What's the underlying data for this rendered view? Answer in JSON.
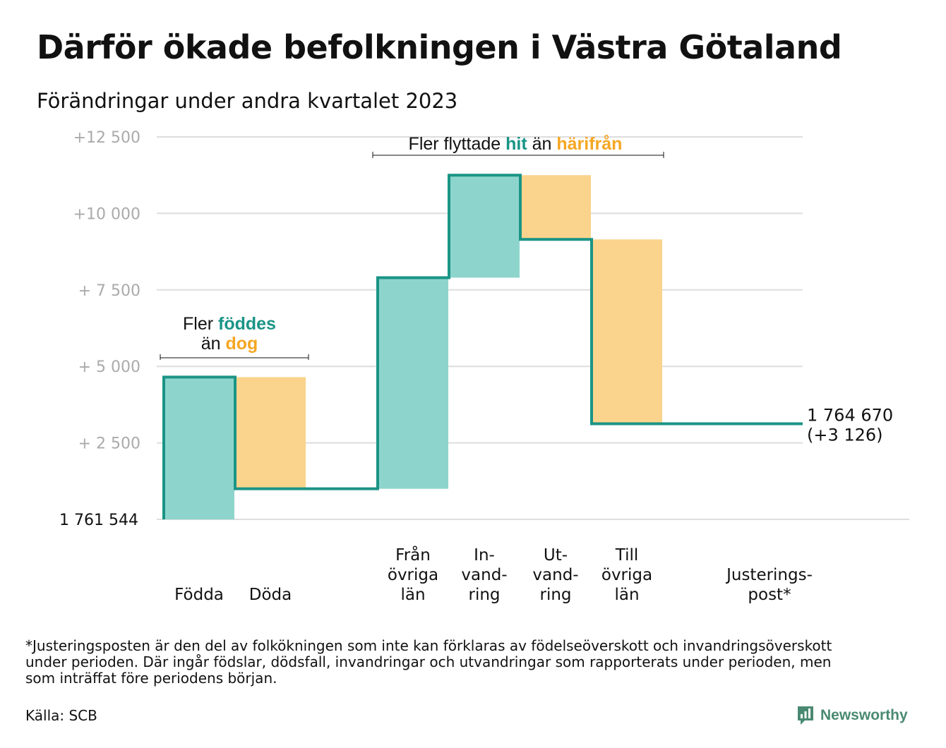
{
  "title": "Därför ökade befolkningen i Västra Götaland",
  "subtitle": "Förändringar under andra kvartalet 2023",
  "colors": {
    "increase": "#8dd5cc",
    "decrease": "#fad48c",
    "line": "#1a9486",
    "grid": "#dddddd",
    "accent_teal": "#1a9486",
    "accent_orange": "#f5a623",
    "brand": "#4a8a72"
  },
  "chart_data": {
    "type": "waterfall",
    "base_label": "1  761   544",
    "base_value": 1761544,
    "y_ticks": [
      {
        "value": 12500,
        "label": "+12   500"
      },
      {
        "value": 10000,
        "label": "+10   000"
      },
      {
        "value": 7500,
        "label": "+  7  500"
      },
      {
        "value": 5000,
        "label": "+  5  000"
      },
      {
        "value": 2500,
        "label": "+  2  500"
      }
    ],
    "ylim": [
      0,
      12500
    ],
    "steps": [
      {
        "label_lines": [
          "Födda"
        ],
        "value": 4650,
        "kind": "increase"
      },
      {
        "label_lines": [
          "Döda"
        ],
        "value": -3650,
        "kind": "decrease"
      },
      {
        "label_lines": [],
        "value": 0,
        "kind": "none"
      },
      {
        "label_lines": [
          "Från",
          "övriga",
          "län"
        ],
        "value": 6900,
        "kind": "increase"
      },
      {
        "label_lines": [
          "In-",
          "vand-",
          "ring"
        ],
        "value": 3350,
        "kind": "increase"
      },
      {
        "label_lines": [
          "Ut-",
          "vand-",
          "ring"
        ],
        "value": -2100,
        "kind": "decrease"
      },
      {
        "label_lines": [
          "Till",
          "övriga",
          "län"
        ],
        "value": -6024,
        "kind": "decrease"
      },
      {
        "label_lines": [],
        "value": 0,
        "kind": "none"
      },
      {
        "label_lines": [
          "Justerings-",
          "post*"
        ],
        "value": 0,
        "kind": "increase"
      }
    ],
    "end_label": "1 764 670",
    "end_change": "(+3 126)",
    "annotation_births": {
      "line1_prefix": "Fler ",
      "line1_highlight": "föddes",
      "line2_prefix": "än ",
      "line2_highlight": "dog"
    },
    "annotation_migration": {
      "prefix": "Fler flyttade ",
      "highlight1": "hit",
      "middle": " än ",
      "highlight2": "härifrån"
    }
  },
  "footnote_lines": [
    "*Justeringsposten är den del av folkökningen som inte kan förklaras av födelseöverskott och invandringsöverskott",
    "under perioden. Där ingår födslar, dödsfall, invandringar och utvandringar som rapporterats under perioden, men",
    "som inträffat före periodens början."
  ],
  "source": "Källa: SCB",
  "brand_name": "Newsworthy"
}
